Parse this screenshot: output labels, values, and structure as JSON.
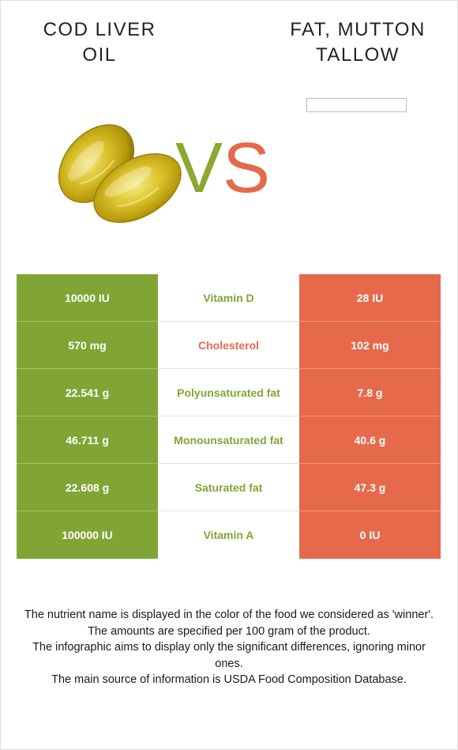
{
  "left_food": {
    "name_line1": "COD LIVER",
    "name_line2": "OIL"
  },
  "right_food": {
    "name_line1": "FAT, MUTTON",
    "name_line2": "TALLOW"
  },
  "vs": {
    "v": "V",
    "s": "S"
  },
  "colors": {
    "left": "#80a535",
    "right": "#e5694a"
  },
  "rows": [
    {
      "left_value": "10000 IU",
      "nutrient": "Vitamin D",
      "winner": "left",
      "right_value": "28 IU"
    },
    {
      "left_value": "570 mg",
      "nutrient": "Cholesterol",
      "winner": "right",
      "right_value": "102 mg"
    },
    {
      "left_value": "22.541 g",
      "nutrient": "Polyunsaturated fat",
      "winner": "left",
      "right_value": "7.8 g"
    },
    {
      "left_value": "46.711 g",
      "nutrient": "Monounsaturated fat",
      "winner": "left",
      "right_value": "40.6 g"
    },
    {
      "left_value": "22.608 g",
      "nutrient": "Saturated fat",
      "winner": "left",
      "right_value": "47.3 g"
    },
    {
      "left_value": "100000 IU",
      "nutrient": "Vitamin A",
      "winner": "left",
      "right_value": "0 IU"
    }
  ],
  "footnote": [
    "The nutrient name is displayed in the color of the food we considered as 'winner'.",
    "The amounts are specified per 100 gram of the product.",
    "The infographic aims to display only the significant differences, ignoring minor ones.",
    "The main source of information is USDA Food Composition Database."
  ]
}
